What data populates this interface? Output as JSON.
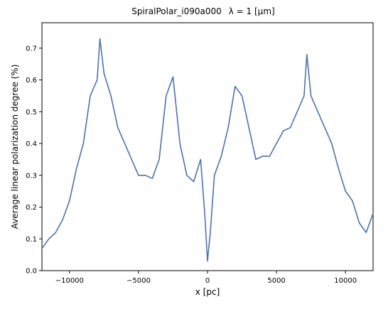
{
  "chart_data": {
    "type": "line",
    "title": "SpiralPolar_i090a000",
    "title_lambda": "λ = 1 [μm]",
    "xlabel": "x [pc]",
    "ylabel": "Average linear polarization degree (%)",
    "xlim": [
      -12000,
      12000
    ],
    "ylim": [
      0.0,
      0.78
    ],
    "xticks": [
      -10000,
      -5000,
      0,
      5000,
      10000
    ],
    "xtick_labels": [
      "−10000",
      "−5000",
      "0",
      "5000",
      "10000"
    ],
    "yticks": [
      0.0,
      0.1,
      0.2,
      0.3,
      0.4,
      0.5,
      0.6,
      0.7
    ],
    "ytick_labels": [
      "0.0",
      "0.1",
      "0.2",
      "0.3",
      "0.4",
      "0.5",
      "0.6",
      "0.7"
    ],
    "grid": false,
    "line_color": "#4c72b0",
    "series": [
      {
        "x": [
          -12000,
          -11500,
          -11000,
          -10500,
          -10000,
          -9500,
          -9000,
          -8500,
          -8000,
          -7800,
          -7500,
          -7000,
          -6500,
          -6000,
          -5500,
          -5000,
          -4500,
          -4000,
          -3500,
          -3000,
          -2500,
          -2000,
          -1500,
          -1000,
          -500,
          -200,
          0,
          200,
          500,
          1000,
          1500,
          2000,
          2500,
          3000,
          3500,
          4000,
          4500,
          5000,
          5500,
          6000,
          6500,
          7000,
          7200,
          7500,
          8000,
          8500,
          9000,
          9500,
          10000,
          10500,
          11000,
          11500,
          12000
        ],
        "y": [
          0.07,
          0.1,
          0.12,
          0.16,
          0.22,
          0.32,
          0.4,
          0.55,
          0.6,
          0.73,
          0.62,
          0.55,
          0.45,
          0.4,
          0.35,
          0.3,
          0.3,
          0.29,
          0.35,
          0.55,
          0.61,
          0.4,
          0.3,
          0.28,
          0.35,
          0.18,
          0.03,
          0.12,
          0.3,
          0.36,
          0.45,
          0.58,
          0.55,
          0.45,
          0.35,
          0.36,
          0.36,
          0.4,
          0.44,
          0.45,
          0.5,
          0.55,
          0.68,
          0.55,
          0.5,
          0.45,
          0.4,
          0.32,
          0.25,
          0.22,
          0.15,
          0.12,
          0.18
        ]
      }
    ]
  }
}
